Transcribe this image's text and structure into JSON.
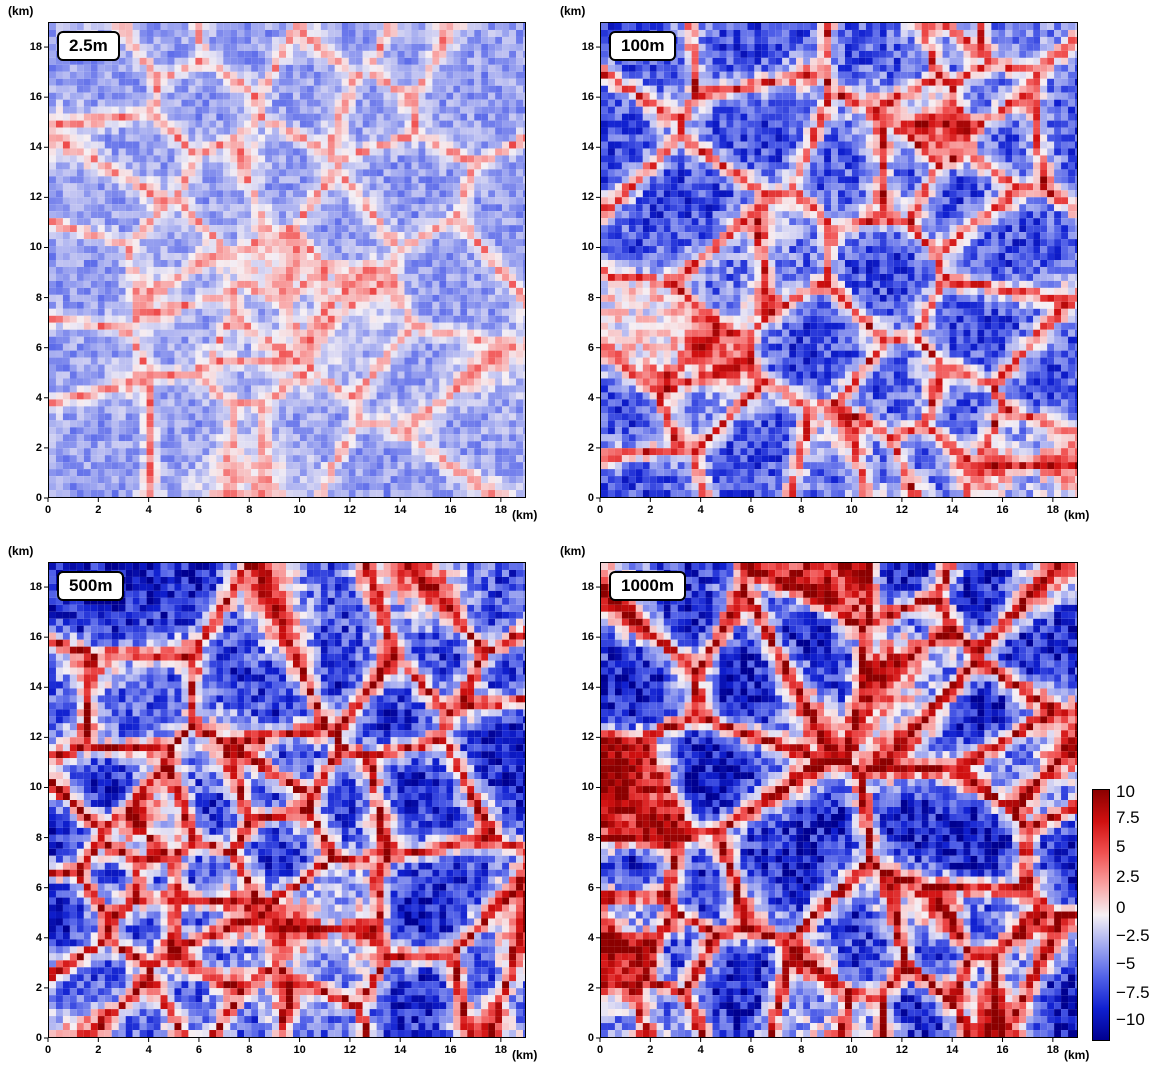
{
  "panels": [
    {
      "label": "2.5m",
      "intensity": 0.35,
      "seed": 11
    },
    {
      "label": "100m",
      "intensity": 0.7,
      "seed": 23
    },
    {
      "label": "500m",
      "intensity": 0.9,
      "seed": 37
    },
    {
      "label": "1000m",
      "intensity": 1.0,
      "seed": 53
    }
  ],
  "axes": {
    "unit_label": "(km)",
    "ticks": [
      "0",
      "2",
      "4",
      "6",
      "8",
      "10",
      "12",
      "14",
      "16",
      "18"
    ],
    "range": [
      0,
      19
    ]
  },
  "colorbar": {
    "labels": [
      "10",
      "7.5",
      "5",
      "2.5",
      "0",
      "−2.5",
      "−5",
      "−7.5",
      "−10"
    ],
    "range": [
      -10,
      10
    ],
    "colors": [
      "#8b0000",
      "#d01010",
      "#f05050",
      "#f8a0a0",
      "#f6f0f4",
      "#a0a8f0",
      "#5060e8",
      "#1020d0",
      "#000090"
    ]
  }
}
